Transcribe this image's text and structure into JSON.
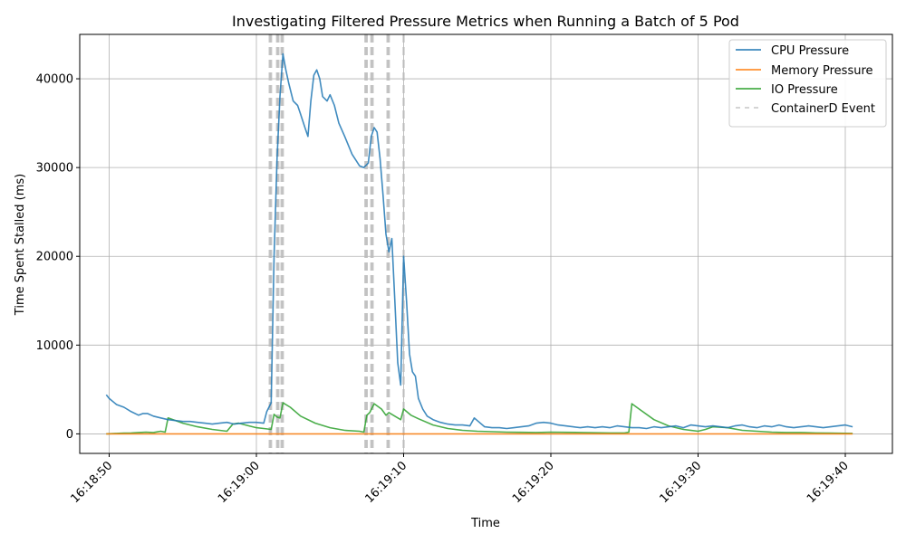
{
  "chart_data": {
    "type": "line",
    "title": "Investigating Filtered Pressure Metrics when Running a Batch of 5 Pod",
    "xlabel": "Time",
    "ylabel": "Time Spent Stalled (ms)",
    "x_axis": {
      "type": "time",
      "range": [
        "16:18:48.0",
        "16:19:43.2"
      ],
      "ticks": [
        "16:18:50",
        "16:19:00",
        "16:19:10",
        "16:19:20",
        "16:19:30",
        "16:19:40"
      ]
    },
    "y_axis": {
      "range": [
        -2200,
        45000
      ],
      "ticks": [
        0,
        10000,
        20000,
        30000,
        40000
      ],
      "tick_labels": [
        "0",
        "10000",
        "20000",
        "30000",
        "40000"
      ]
    },
    "grid": true,
    "legend": {
      "position": "top-right",
      "entries": [
        "CPU Pressure",
        "Memory Pressure",
        "IO Pressure",
        "ContainerD Event"
      ]
    },
    "colors": {
      "cpu": "#1f77b4",
      "memory": "#ff7f0e",
      "io": "#2ca02c",
      "event": "#bbbbbb",
      "grid": "#b0b0b0"
    },
    "series": [
      {
        "name": "CPU Pressure",
        "x": [
          "16:18:49.8",
          "16:18:50.0",
          "16:18:50.5",
          "16:18:51.0",
          "16:18:51.5",
          "16:18:52.0",
          "16:18:52.3",
          "16:18:52.6",
          "16:18:53.0",
          "16:18:53.5",
          "16:18:54.0",
          "16:18:54.5",
          "16:18:55.0",
          "16:18:55.5",
          "16:18:56.0",
          "16:18:56.5",
          "16:18:57.0",
          "16:18:57.5",
          "16:18:58.0",
          "16:18:58.5",
          "16:18:59.0",
          "16:18:59.5",
          "16:19:00.0",
          "16:19:00.5",
          "16:19:00.7",
          "16:19:01.0",
          "16:19:01.2",
          "16:19:01.4",
          "16:19:01.6",
          "16:19:01.8",
          "16:19:02.0",
          "16:19:02.2",
          "16:19:02.5",
          "16:19:02.8",
          "16:19:03.0",
          "16:19:03.3",
          "16:19:03.5",
          "16:19:03.7",
          "16:19:03.9",
          "16:19:04.1",
          "16:19:04.3",
          "16:19:04.5",
          "16:19:04.8",
          "16:19:05.0",
          "16:19:05.3",
          "16:19:05.6",
          "16:19:06.0",
          "16:19:06.5",
          "16:19:07.0",
          "16:19:07.3",
          "16:19:07.6",
          "16:19:07.8",
          "16:19:08.0",
          "16:19:08.2",
          "16:19:08.4",
          "16:19:08.6",
          "16:19:08.8",
          "16:19:09.0",
          "16:19:09.2",
          "16:19:09.4",
          "16:19:09.6",
          "16:19:09.8",
          "16:19:10.0",
          "16:19:10.2",
          "16:19:10.4",
          "16:19:10.6",
          "16:19:10.8",
          "16:19:11.0",
          "16:19:11.3",
          "16:19:11.6",
          "16:19:12.0",
          "16:19:12.5",
          "16:19:13.0",
          "16:19:13.5",
          "16:19:14.0",
          "16:19:14.5",
          "16:19:14.8",
          "16:19:15.0",
          "16:19:15.5",
          "16:19:16.0",
          "16:19:16.5",
          "16:19:17.0",
          "16:19:17.5",
          "16:19:18.0",
          "16:19:18.5",
          "16:19:19.0",
          "16:19:19.5",
          "16:19:20.0",
          "16:19:20.5",
          "16:19:21.0",
          "16:19:21.5",
          "16:19:22.0",
          "16:19:22.5",
          "16:19:23.0",
          "16:19:23.5",
          "16:19:24.0",
          "16:19:24.5",
          "16:19:25.0",
          "16:19:25.5",
          "16:19:26.0",
          "16:19:26.5",
          "16:19:27.0",
          "16:19:27.5",
          "16:19:28.0",
          "16:19:28.5",
          "16:19:29.0",
          "16:19:29.5",
          "16:19:30.0",
          "16:19:30.5",
          "16:19:31.0",
          "16:19:31.5",
          "16:19:32.0",
          "16:19:32.5",
          "16:19:33.0",
          "16:19:33.5",
          "16:19:34.0",
          "16:19:34.5",
          "16:19:35.0",
          "16:19:35.5",
          "16:19:36.0",
          "16:19:36.5",
          "16:19:37.0",
          "16:19:37.5",
          "16:19:38.0",
          "16:19:38.5",
          "16:19:39.0",
          "16:19:39.5",
          "16:19:40.0",
          "16:19:40.5"
        ],
        "values": [
          4400,
          4000,
          3300,
          3000,
          2500,
          2100,
          2300,
          2300,
          2000,
          1800,
          1600,
          1500,
          1400,
          1400,
          1300,
          1200,
          1100,
          1200,
          1300,
          1100,
          1200,
          1300,
          1300,
          1200,
          2500,
          3500,
          20000,
          31000,
          38000,
          42800,
          41000,
          39500,
          37500,
          37000,
          36000,
          34500,
          33500,
          37500,
          40400,
          41000,
          40000,
          38000,
          37500,
          38200,
          37000,
          35000,
          33500,
          31500,
          30200,
          30000,
          30500,
          33500,
          34500,
          34000,
          31000,
          27000,
          22500,
          20500,
          22000,
          15000,
          8000,
          5500,
          20000,
          15000,
          9000,
          7000,
          6500,
          4000,
          2800,
          2000,
          1600,
          1300,
          1100,
          1000,
          1000,
          900,
          1800,
          1500,
          800,
          700,
          700,
          600,
          700,
          800,
          900,
          1200,
          1300,
          1200,
          1000,
          900,
          800,
          700,
          800,
          700,
          800,
          700,
          900,
          800,
          700,
          700,
          600,
          800,
          700,
          800,
          900,
          700,
          1000,
          900,
          800,
          900,
          800,
          700,
          900,
          1000,
          800,
          700,
          900,
          800,
          1000,
          800,
          700,
          800,
          900,
          800,
          700,
          800,
          900,
          1000,
          800
        ]
      },
      {
        "name": "Memory Pressure",
        "x": [
          "16:18:49.8",
          "16:19:40.5"
        ],
        "values": [
          0,
          0
        ]
      },
      {
        "name": "IO Pressure",
        "x": [
          "16:18:49.8",
          "16:18:50.5",
          "16:18:51.0",
          "16:18:51.5",
          "16:18:52.0",
          "16:18:52.5",
          "16:18:53.0",
          "16:18:53.5",
          "16:18:53.8",
          "16:18:54.0",
          "16:18:55.0",
          "16:18:56.0",
          "16:18:57.0",
          "16:18:58.0",
          "16:18:58.4",
          "16:18:58.8",
          "16:18:59.5",
          "16:19:00.0",
          "16:19:00.5",
          "16:19:01.0",
          "16:19:01.2",
          "16:19:01.4",
          "16:19:01.6",
          "16:19:01.8",
          "16:19:02.3",
          "16:19:03.0",
          "16:19:04.0",
          "16:19:05.0",
          "16:19:06.0",
          "16:19:07.0",
          "16:19:07.3",
          "16:19:07.5",
          "16:19:07.7",
          "16:19:08.0",
          "16:19:08.5",
          "16:19:08.8",
          "16:19:09.0",
          "16:19:09.5",
          "16:19:09.8",
          "16:19:10.0",
          "16:19:10.5",
          "16:19:11.0",
          "16:19:12.0",
          "16:19:13.0",
          "16:19:14.0",
          "16:19:15.0",
          "16:19:16.0",
          "16:19:17.0",
          "16:19:18.0",
          "16:19:19.0",
          "16:19:20.0",
          "16:19:22.0",
          "16:19:24.0",
          "16:19:25.0",
          "16:19:25.3",
          "16:19:25.5",
          "16:19:26.0",
          "16:19:27.0",
          "16:19:28.0",
          "16:19:29.0",
          "16:19:30.0",
          "16:19:30.5",
          "16:19:31.0",
          "16:19:32.0",
          "16:19:33.0",
          "16:19:34.0",
          "16:19:35.0",
          "16:19:36.0",
          "16:19:37.0",
          "16:19:38.0",
          "16:19:39.0",
          "16:19:40.5"
        ],
        "values": [
          0,
          50,
          80,
          100,
          150,
          200,
          150,
          300,
          200,
          1800,
          1200,
          800,
          500,
          300,
          1100,
          1200,
          900,
          700,
          600,
          500,
          2200,
          1900,
          1800,
          3500,
          3000,
          2000,
          1200,
          700,
          400,
          300,
          200,
          2100,
          2400,
          3400,
          2800,
          2100,
          2400,
          1900,
          1600,
          2800,
          2100,
          1700,
          1000,
          600,
          400,
          300,
          250,
          200,
          180,
          150,
          200,
          150,
          100,
          100,
          200,
          3400,
          2800,
          1600,
          900,
          500,
          300,
          500,
          800,
          700,
          400,
          300,
          200,
          150,
          150,
          100,
          80,
          50
        ]
      }
    ],
    "events": {
      "name": "ContainerD Event",
      "times": [
        "16:19:00.9",
        "16:19:01.0",
        "16:19:01.4",
        "16:19:01.5",
        "16:19:01.7",
        "16:19:01.8",
        "16:19:07.4",
        "16:19:07.5",
        "16:19:07.8",
        "16:19:07.9",
        "16:19:08.9",
        "16:19:09.0",
        "16:19:10.0"
      ]
    }
  }
}
